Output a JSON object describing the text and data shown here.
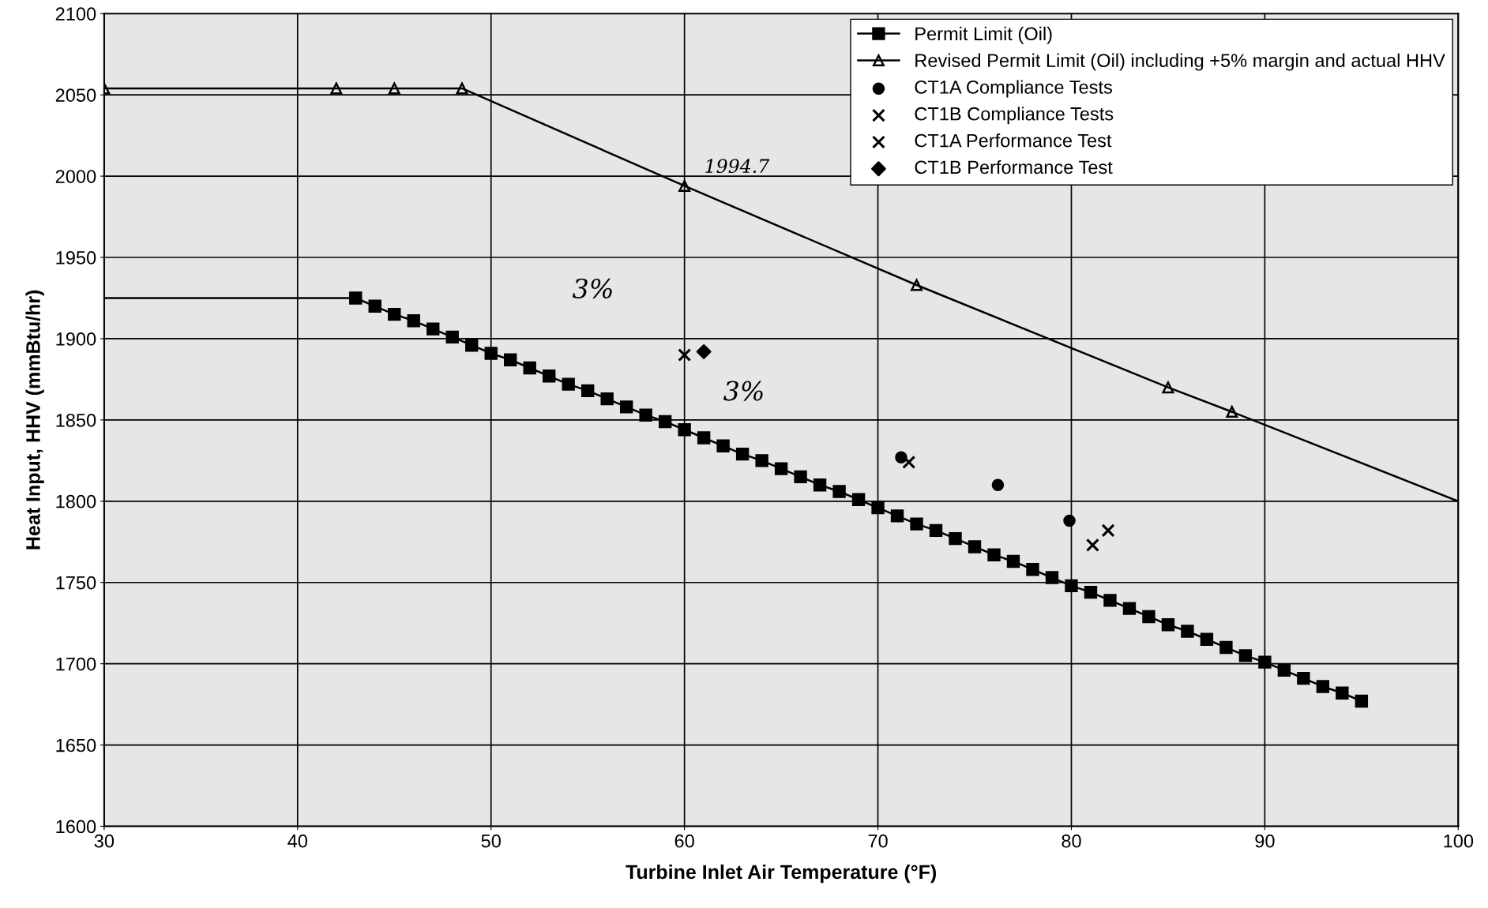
{
  "chart_data": {
    "type": "line",
    "xlabel": "Turbine Inlet Air Temperature (°F)",
    "ylabel": "Heat Input, HHV (mmBtu/hr)",
    "xlim": [
      30,
      100
    ],
    "xticks": [
      30,
      40,
      50,
      60,
      70,
      80,
      90,
      100
    ],
    "ylim": [
      1600,
      2100
    ],
    "yticks": [
      1600,
      1650,
      1700,
      1750,
      1800,
      1850,
      1900,
      1950,
      2000,
      2050,
      2100
    ],
    "grid": true,
    "legend": "top right",
    "series": [
      {
        "color": "#000000",
        "x": [
          30,
          43
        ],
        "values": [
          1925,
          1925
        ]
      },
      {
        "name": "Permit Limit (Oil)",
        "color": "#000000",
        "marker": "square",
        "x": [
          43,
          44,
          45,
          46,
          47,
          48,
          49,
          50,
          51,
          52,
          53,
          54,
          55,
          56,
          57,
          58,
          59,
          60,
          61,
          62,
          63,
          64,
          65,
          66,
          67,
          68,
          69,
          70,
          71,
          72,
          73,
          74,
          75,
          76,
          77,
          78,
          79,
          80,
          81,
          82,
          83,
          84,
          85,
          86,
          87,
          88,
          89,
          90,
          91,
          92,
          93,
          94,
          95
        ],
        "values": [
          1925,
          1920,
          1915,
          1911,
          1906,
          1901,
          1896,
          1891,
          1887,
          1882,
          1877,
          1872,
          1868,
          1863,
          1858,
          1853,
          1849,
          1844,
          1839,
          1834,
          1829,
          1825,
          1820,
          1815,
          1810,
          1806,
          1801,
          1796,
          1791,
          1786,
          1782,
          1777,
          1772,
          1767,
          1763,
          1758,
          1753,
          1748,
          1744,
          1739,
          1734,
          1729,
          1724,
          1720,
          1715,
          1710,
          1705,
          1701,
          1696,
          1691,
          1686,
          1682,
          1677
        ]
      },
      {
        "name": "Revised Permit Limit (Oil) including +5% margin and actual HHV",
        "color": "#000000",
        "marker": "triangle",
        "x": [
          30,
          42,
          45,
          48.5,
          60,
          72,
          85,
          88.3
        ],
        "values": [
          2054,
          2054,
          2054,
          2054,
          1994,
          1933,
          1870,
          1855
        ]
      },
      {
        "color": "#000000",
        "x": [
          88.3,
          100
        ],
        "values": [
          1855,
          1800
        ]
      },
      {
        "name": "CT1A Compliance Tests",
        "type": "scatter",
        "color": "#000000",
        "marker": "circle",
        "x": [
          71.2,
          76.2,
          79.9
        ],
        "values": [
          1827,
          1810,
          1788
        ]
      },
      {
        "name": "CT1B Compliance Tests",
        "type": "scatter",
        "color": "#000000",
        "marker": "cross",
        "x": [
          71.6,
          81.1,
          81.9
        ],
        "values": [
          1824,
          1773,
          1782
        ]
      },
      {
        "name": "CT1A Performance Test",
        "type": "scatter",
        "color": "#000000",
        "marker": "cross",
        "x": [
          60
        ],
        "values": [
          1890
        ]
      },
      {
        "name": "CT1B Performance Test",
        "type": "scatter",
        "color": "#000000",
        "marker": "diamond",
        "x": [
          61
        ],
        "values": [
          1892
        ]
      }
    ],
    "annotations": [
      {
        "text": "1994.7",
        "x": 60,
        "y": 1994
      },
      "3%",
      "3%"
    ]
  }
}
